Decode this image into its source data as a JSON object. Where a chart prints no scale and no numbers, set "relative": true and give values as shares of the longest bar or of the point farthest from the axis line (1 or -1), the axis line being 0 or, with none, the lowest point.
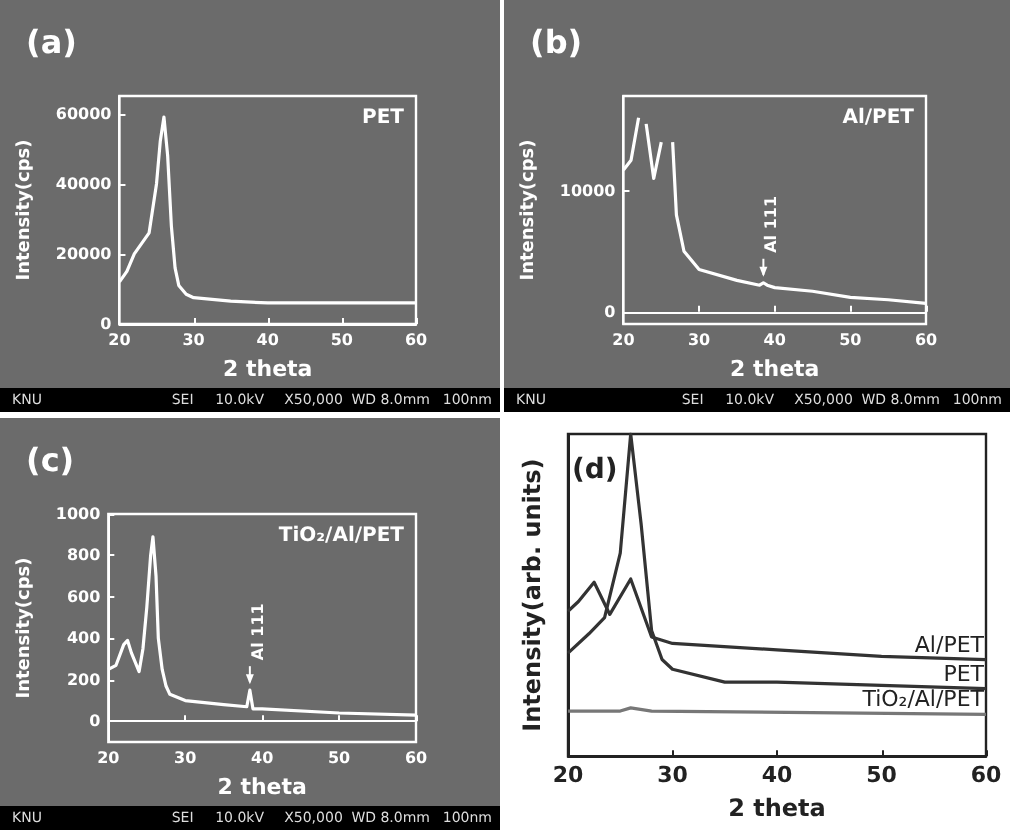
{
  "chart_data": [
    {
      "type": "line",
      "title": "(a)",
      "xlabel": "2 theta",
      "ylabel": "Intensity(cps)",
      "x": [
        20,
        21,
        22,
        23,
        24,
        25,
        25.5,
        26,
        26.5,
        27,
        27.5,
        28,
        29,
        30,
        35,
        40,
        50,
        60
      ],
      "xlim": [
        20,
        60
      ],
      "xticks": [
        20,
        30,
        40,
        50,
        60
      ],
      "ylim": [
        0,
        65000
      ],
      "yticks": [
        0,
        20000,
        40000,
        60000
      ],
      "series": [
        {
          "name": "PET",
          "color": "#ffffff",
          "values": [
            12000,
            15000,
            20000,
            23000,
            26000,
            40000,
            52000,
            59000,
            48000,
            28000,
            16000,
            11000,
            8500,
            7500,
            6500,
            6000,
            6000,
            6000
          ]
        }
      ],
      "annotations": [
        "KNU",
        "SEI",
        "10.0kV",
        "X50,000",
        "WD 8.0mm",
        "100nm"
      ]
    },
    {
      "type": "line",
      "title": "(b)",
      "xlabel": "2 theta",
      "ylabel": "Intensity(cps)",
      "x": [
        20,
        21,
        22,
        22.5,
        23,
        24,
        25,
        25.8,
        26.5,
        27,
        28,
        30,
        35,
        38,
        38.5,
        39,
        40,
        45,
        50,
        55,
        60
      ],
      "xlim": [
        20,
        60
      ],
      "xticks": [
        20,
        30,
        40,
        50,
        60
      ],
      "ylim": [
        -1000,
        17800
      ],
      "yticks": [
        0,
        10000
      ],
      "series": [
        {
          "name": "Al/PET",
          "color": "#ffffff",
          "values": [
            11700,
            12500,
            16000,
            null,
            15500,
            11000,
            14000,
            null,
            14000,
            8000,
            5000,
            3500,
            2600,
            2200,
            2400,
            2200,
            2000,
            1700,
            1200,
            1000,
            700
          ]
        }
      ],
      "annotations": [
        "KNU",
        "SEI",
        "10.0kV",
        "X50,000",
        "WD 8.0mm",
        "100nm",
        {
          "text": "Al 111",
          "x": 38.5,
          "y": 2400
        }
      ]
    },
    {
      "type": "line",
      "title": "(c)",
      "xlabel": "2 theta",
      "ylabel": "Intensity(cps)",
      "x": [
        20,
        21,
        22,
        22.5,
        23,
        24,
        24.5,
        25,
        25.5,
        25.8,
        26.2,
        26.5,
        27,
        27.5,
        28,
        30,
        35,
        38,
        38.4,
        38.8,
        40,
        50,
        60
      ],
      "xlim": [
        20,
        60
      ],
      "xticks": [
        20,
        30,
        40,
        50,
        60
      ],
      "ylim": [
        -100,
        1000
      ],
      "yticks": [
        0,
        200,
        400,
        600,
        800,
        1000
      ],
      "series": [
        {
          "name": "TiO₂/Al/PET",
          "color": "#ffffff",
          "values": [
            250,
            270,
            370,
            390,
            330,
            240,
            350,
            550,
            800,
            890,
            700,
            400,
            250,
            170,
            130,
            100,
            80,
            70,
            150,
            60,
            60,
            40,
            30
          ]
        }
      ],
      "annotations": [
        "KNU",
        "SEI",
        "10.0kV",
        "X50,000",
        "WD 8.0mm",
        "100nm",
        {
          "text": "Al 111",
          "x": 38.4,
          "y": 150
        }
      ]
    },
    {
      "type": "line",
      "title": "(d)",
      "xlabel": "2 theta",
      "ylabel": "Intensity(arb. units)",
      "relative": true,
      "tick_labels": "x",
      "xlim": [
        20,
        60
      ],
      "xticks": [
        20,
        30,
        40,
        50,
        60
      ],
      "series": [
        {
          "name": "Al/PET",
          "color": "#333333",
          "x": [
            20,
            21,
            22.5,
            24,
            26,
            28,
            30,
            40,
            50,
            60
          ],
          "values": [
            0.45,
            0.48,
            0.54,
            0.44,
            0.55,
            0.37,
            0.35,
            0.33,
            0.31,
            0.3
          ]
        },
        {
          "name": "PET",
          "color": "#333333",
          "x": [
            20,
            22,
            23.5,
            25,
            26,
            27,
            28,
            29,
            30,
            35,
            40,
            50,
            60
          ],
          "values": [
            0.32,
            0.38,
            0.43,
            0.63,
            1,
            0.72,
            0.39,
            0.3,
            0.27,
            0.23,
            0.23,
            0.22,
            0.21
          ]
        },
        {
          "name": "TiO₂/Al/PET",
          "color": "#777777",
          "x": [
            20,
            25,
            26,
            28,
            60
          ],
          "values": [
            0.14,
            0.14,
            0.15,
            0.14,
            0.13
          ]
        }
      ]
    }
  ]
}
